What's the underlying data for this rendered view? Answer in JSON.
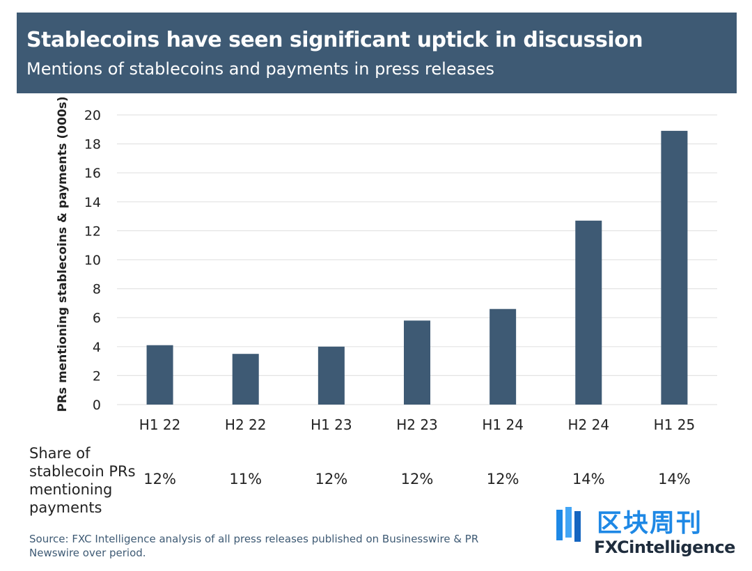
{
  "header": {
    "title": "Stablecoins have seen significant uptick in discussion",
    "subtitle": "Mentions of stablecoins and payments in press releases"
  },
  "colors": {
    "banner": "#3e5a74",
    "bar": "#3e5a74",
    "grid": "#e3e3e3",
    "logo_cn": "#1e88e5"
  },
  "chart_data": {
    "type": "bar",
    "title": "Stablecoins have seen significant uptick in discussion",
    "subtitle": "Mentions of stablecoins and payments in press releases",
    "ylabel": "PRs mentioning stablecoins & payments (000s)",
    "xlabel": "",
    "categories": [
      "H1 22",
      "H2 22",
      "H1 23",
      "H2 23",
      "H1 24",
      "H2 24",
      "H1 25"
    ],
    "values": [
      4.1,
      3.5,
      4.0,
      5.8,
      6.6,
      12.7,
      18.9
    ],
    "ylim": [
      0,
      20
    ],
    "yticks": [
      0,
      2,
      4,
      6,
      8,
      10,
      12,
      14,
      16,
      18,
      20
    ],
    "grid": true,
    "legend": "none"
  },
  "share_table": {
    "label": "Share of stablecoin PRs mentioning payments",
    "values": [
      "12%",
      "11%",
      "12%",
      "12%",
      "12%",
      "14%",
      "14%"
    ]
  },
  "source": "Source: FXC Intelligence analysis of all press releases published on Businesswire & PR Newswire over period.",
  "logo": {
    "cn": "区块周刊",
    "en": "FXCintelligence"
  }
}
